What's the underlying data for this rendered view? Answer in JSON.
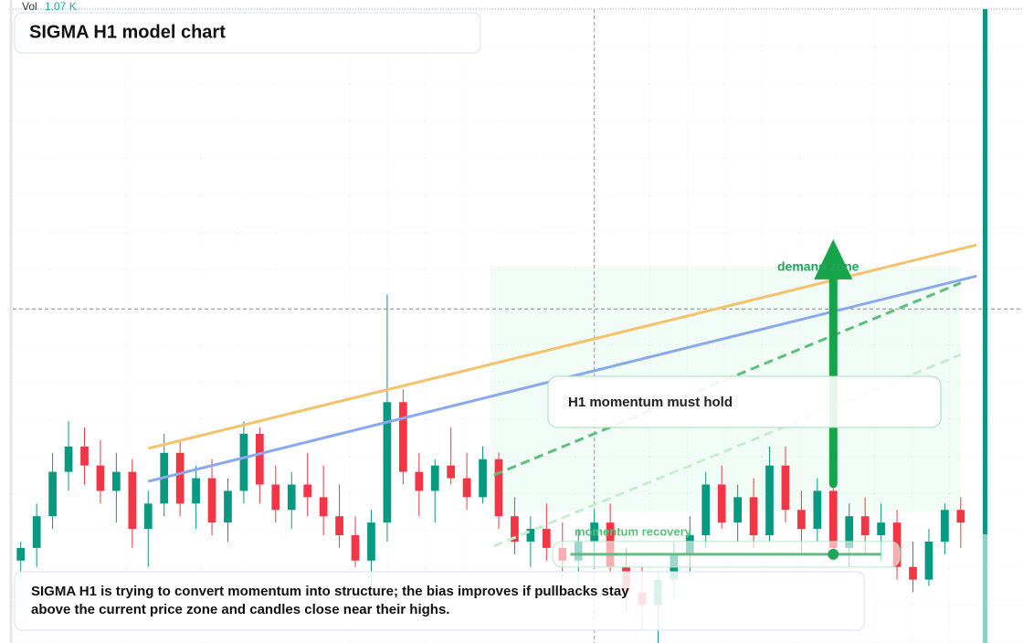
{
  "chart_data": {
    "type": "candlestick",
    "title": "SIGMA H1 model chart",
    "volume_label": "Vol",
    "volume_value": "1.07 K",
    "xlim": [
      -0.5,
      60.5
    ],
    "ylim": [
      0,
      100
    ],
    "up_color": "#089981",
    "down_color": "#f23645",
    "open": [
      13,
      15,
      20,
      27,
      31,
      28,
      24,
      27,
      18,
      22,
      30,
      22,
      26,
      19,
      24,
      33,
      25,
      21,
      25,
      23,
      20,
      17,
      13,
      19,
      38,
      27,
      24,
      28,
      26,
      23,
      29,
      20,
      16,
      18,
      15,
      13,
      16,
      19,
      12,
      8,
      6,
      10,
      14,
      17,
      25,
      19,
      23,
      17,
      28,
      21,
      18,
      24,
      15,
      20,
      17,
      19,
      12,
      10,
      16,
      21
    ],
    "high": [
      16,
      22,
      30,
      35,
      34,
      32,
      30,
      29,
      24,
      33,
      32,
      28,
      29,
      26,
      35,
      34,
      28,
      27,
      30,
      28,
      25,
      20,
      21,
      55,
      40,
      30,
      29,
      34,
      30,
      31,
      30,
      23,
      20,
      22,
      19,
      18,
      21,
      22,
      15,
      12,
      11,
      16,
      20,
      27,
      28,
      25,
      26,
      31,
      31,
      24,
      26,
      25,
      22,
      23,
      22,
      21,
      16,
      18,
      22,
      23
    ],
    "low": [
      10,
      12,
      18,
      24,
      25,
      22,
      19,
      15,
      12,
      20,
      20,
      18,
      17,
      16,
      22,
      22,
      19,
      18,
      20,
      17,
      15,
      12,
      8,
      16,
      25,
      20,
      19,
      25,
      21,
      22,
      18,
      14,
      12,
      13,
      10,
      9,
      12,
      11,
      5,
      2,
      0,
      7,
      11,
      15,
      18,
      16,
      15,
      16,
      19,
      14,
      16,
      13,
      12,
      14,
      13,
      10,
      8,
      9,
      14,
      15
    ],
    "close": [
      15,
      20,
      27,
      31,
      28,
      24,
      27,
      18,
      22,
      30,
      22,
      26,
      19,
      24,
      33,
      25,
      21,
      25,
      23,
      20,
      17,
      13,
      19,
      38,
      27,
      24,
      28,
      26,
      23,
      29,
      20,
      16,
      18,
      15,
      13,
      16,
      19,
      12,
      8,
      6,
      10,
      14,
      17,
      25,
      19,
      23,
      17,
      28,
      21,
      18,
      24,
      15,
      20,
      17,
      19,
      12,
      10,
      16,
      21,
      19
    ],
    "lines": [
      {
        "color": "#f5c26b",
        "style": "solid",
        "x": [
          8,
          60
        ],
        "values": [
          30.7,
          62.8
        ]
      },
      {
        "color": "#8aa8ee",
        "style": "solid",
        "x": [
          8,
          60
        ],
        "values": [
          25.5,
          57.9
        ]
      },
      {
        "color": "#5cbf7c",
        "style": "dashed",
        "x": [
          29.7,
          59
        ],
        "values": [
          26.5,
          56.8
        ]
      },
      {
        "color": "#c8ecd2",
        "style": "dashed",
        "x": [
          29.7,
          59
        ],
        "values": [
          15.3,
          45.5
        ]
      }
    ],
    "crosshair": {
      "x": 36,
      "y": 52.7
    },
    "zone": {
      "x": [
        29.5,
        59
      ],
      "values": [
        20.7,
        59.4
      ]
    },
    "arrow": {
      "x": 51,
      "values": [
        25.1,
        63.7
      ],
      "color": "#16a34a"
    },
    "momentum_line": {
      "x": [
        34.5,
        54
      ],
      "value": 14.0,
      "dot_x": 51,
      "color": "#5cbf7c"
    },
    "annotations": {
      "zone_label": "demand zone",
      "box_label": "H1 momentum must hold",
      "line_label": "momentum recovery",
      "note": "SIGMA H1 is trying to convert momentum into structure; the bias improves if pullbacks stay above the current price zone and candles close near their highs."
    }
  }
}
